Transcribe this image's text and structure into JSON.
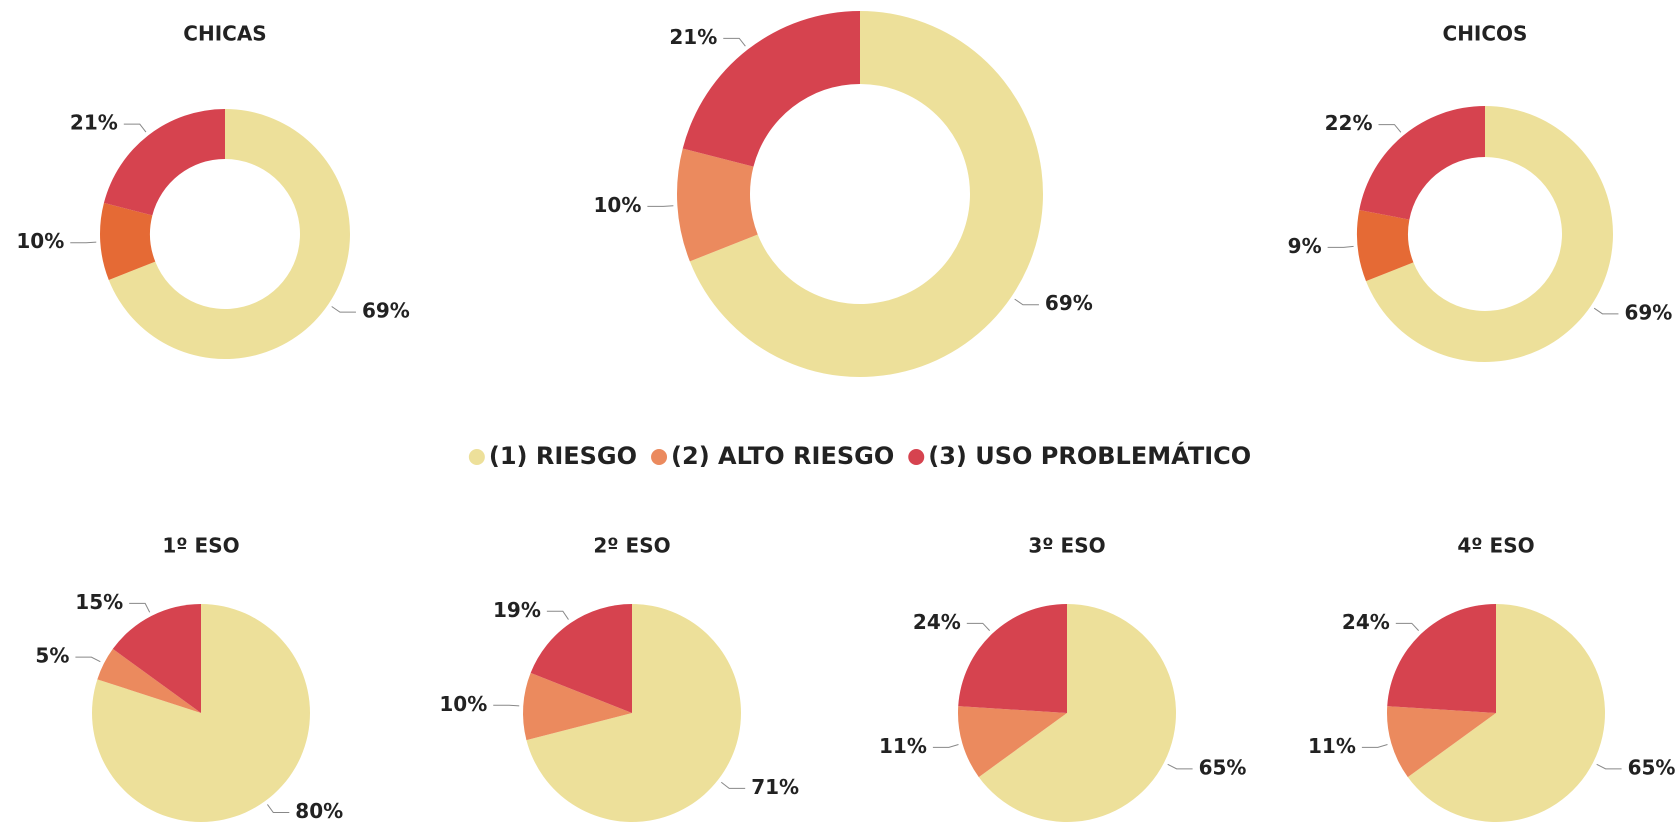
{
  "chart_data": [
    {
      "type": "donut",
      "title": "CHICAS",
      "categories": [
        "(1) RIESGO",
        "(2) ALTO RIESGO",
        "(3) USO PROBLEMÁTICO"
      ],
      "values": [
        69,
        10,
        21
      ],
      "value_labels": [
        "69%",
        "10%",
        "21%"
      ],
      "colors": [
        "#ede09a",
        "#e56a35",
        "#d6434f"
      ]
    },
    {
      "type": "donut",
      "categories": [
        "(1) RIESGO",
        "(2) ALTO RIESGO",
        "(3) USO PROBLEMÁTICO"
      ],
      "values": [
        69,
        10,
        21
      ],
      "value_labels": [
        "69%",
        "10%",
        "21%"
      ],
      "colors": [
        "#ede09a",
        "#eb8a5e",
        "#d6434f"
      ],
      "legend": "middle"
    },
    {
      "type": "donut",
      "title": "CHICOS",
      "categories": [
        "(1) RIESGO",
        "(2) ALTO RIESGO",
        "(3) USO PROBLEMÁTICO"
      ],
      "values": [
        69,
        9,
        22
      ],
      "value_labels": [
        "69%",
        "9%",
        "22%"
      ],
      "colors": [
        "#ede09a",
        "#e56a35",
        "#d6434f"
      ]
    },
    {
      "type": "pie",
      "title": "1º ESO",
      "categories": [
        "(1) RIESGO",
        "(2) ALTO RIESGO",
        "(3) USO PROBLEMÁTICO"
      ],
      "values": [
        80,
        5,
        15
      ],
      "value_labels": [
        "80%",
        "5%",
        "15%"
      ],
      "colors": [
        "#ede09a",
        "#eb8a5e",
        "#d6434f"
      ]
    },
    {
      "type": "pie",
      "title": "2º ESO",
      "categories": [
        "(1) RIESGO",
        "(2) ALTO RIESGO",
        "(3) USO PROBLEMÁTICO"
      ],
      "values": [
        71,
        10,
        19
      ],
      "value_labels": [
        "71%",
        "10%",
        "19%"
      ],
      "colors": [
        "#ede09a",
        "#eb8a5e",
        "#d6434f"
      ]
    },
    {
      "type": "pie",
      "title": "3º ESO",
      "categories": [
        "(1) RIESGO",
        "(2) ALTO RIESGO",
        "(3) USO PROBLEMÁTICO"
      ],
      "values": [
        65,
        11,
        24
      ],
      "value_labels": [
        "65%",
        "11%",
        "24%"
      ],
      "colors": [
        "#ede09a",
        "#eb8a5e",
        "#d6434f"
      ]
    },
    {
      "type": "pie",
      "title": "4º ESO",
      "categories": [
        "(1) RIESGO",
        "(2) ALTO RIESGO",
        "(3) USO PROBLEMÁTICO"
      ],
      "values": [
        65,
        11,
        24
      ],
      "value_labels": [
        "65%",
        "11%",
        "24%"
      ],
      "colors": [
        "#ede09a",
        "#eb8a5e",
        "#d6434f"
      ]
    }
  ]
}
